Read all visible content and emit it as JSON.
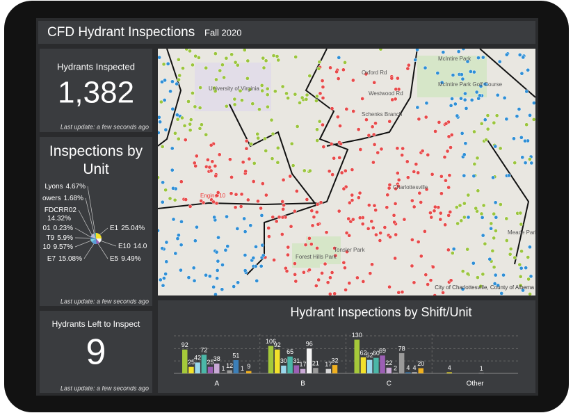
{
  "header": {
    "title": "CFD Hydrant Inspections",
    "subtitle": "Fall 2020"
  },
  "indicators": [
    {
      "title": "Hydrants Inspected",
      "value": "1,382",
      "footer": "Last update: a few seconds ago"
    },
    {
      "title": "Hydrants Left to Inspect",
      "value": 9,
      "footer": "Last update: a few seconds ago"
    }
  ],
  "map": {
    "labels": [
      "Charlottesville",
      "Engine 10",
      "McIntire Park",
      "McIntire Park Golf Course",
      "University of Virginia",
      "Oxford Rd",
      "Westwood Rd",
      "Schenks Branch",
      "Tonsler Park",
      "Forest Hills Park",
      "Meade Park"
    ],
    "attribution": "City of Charlottesville, County of Albema"
  },
  "chart_data": [
    {
      "type": "pie",
      "title": "Inspections by Unit",
      "footer": "Last update: a few seconds ago",
      "categories": [
        "E1",
        "E10",
        "E5",
        "E7",
        "10",
        "T9",
        "01",
        "FDCRR02",
        "owers",
        "Lyons"
      ],
      "values": [
        25.04,
        14.0,
        9.49,
        15.08,
        9.57,
        5.9,
        0.23,
        14.32,
        1.68,
        4.67
      ],
      "value_labels": [
        "25.04%",
        "14.0",
        "9.49%",
        "15.08%",
        "9.57%",
        "5.9%",
        "0.23%",
        "14.32%",
        "1.68%",
        "4.67%"
      ],
      "colors": [
        "#f2e12b",
        "#f4f4f4",
        "#9c5fb5",
        "#5aa0d8",
        "#7fd3e0",
        "#3c7fb8",
        "#e0e0e0",
        "#b8b8d8",
        "#d070a0",
        "#4bb7a8"
      ]
    },
    {
      "type": "bar",
      "title": "Hydrant Inspections by Shift/Unit",
      "categories": [
        "A",
        "B",
        "C",
        "Other"
      ],
      "ylim": [
        0,
        145
      ],
      "series": [
        {
          "color": "#a5c93a",
          "values": [
            92,
            106,
            130,
            null
          ]
        },
        {
          "color": "#f2e12b",
          "values": [
            25,
            92,
            62,
            4
          ]
        },
        {
          "color": "#9ad8ec",
          "values": [
            42,
            30,
            52,
            null
          ]
        },
        {
          "color": "#4bb7a8",
          "values": [
            72,
            65,
            60,
            null
          ]
        },
        {
          "color": "#9c5fb5",
          "values": [
            25,
            31,
            69,
            null
          ]
        },
        {
          "color": "#c9a9d6",
          "values": [
            38,
            17,
            22,
            null
          ]
        },
        {
          "color": "#f4f4f4",
          "values": [
            1,
            96,
            2,
            1
          ]
        },
        {
          "color": "#9a9a9a",
          "values": [
            12,
            21,
            78,
            null
          ]
        },
        {
          "color": "#3c7fb8",
          "values": [
            51,
            null,
            4,
            null
          ]
        },
        {
          "color": "#d8d8d8",
          "values": [
            1,
            17,
            4,
            null
          ]
        },
        {
          "color": "#f0b020",
          "values": [
            9,
            32,
            20,
            null
          ]
        }
      ]
    }
  ]
}
